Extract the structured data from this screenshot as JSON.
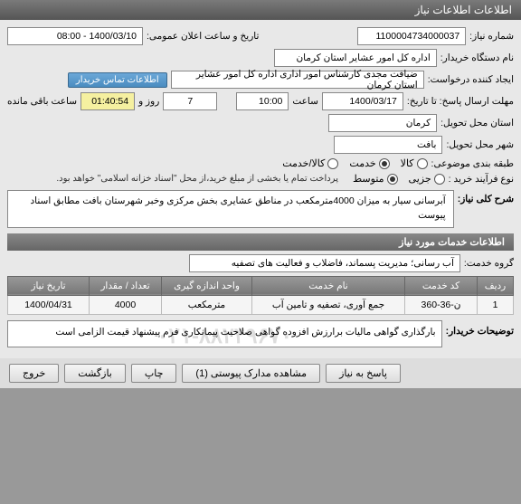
{
  "window": {
    "title": "اطلاعات اطلاعات نیاز"
  },
  "fields": {
    "request_no_label": "شماره نیاز:",
    "request_no": "1100004734000037",
    "announce_label": "تاریخ و ساعت اعلان عمومی:",
    "announce_value": "1400/03/10 - 08:00",
    "org_label": "نام دستگاه خریدار:",
    "org_value": "اداره کل امور عشایر استان کرمان",
    "creator_label": "ایجاد کننده درخواست:",
    "creator_value": "ضیافت مجدی کارشناس امور اداری اداره کل امور عشایر استان کرمان",
    "contact_btn": "اطلاعات تماس خریدار",
    "deadline_label": "مهلت ارسال پاسخ: تا تاریخ:",
    "deadline_date": "1400/03/17",
    "time_label": "ساعت",
    "deadline_time": "10:00",
    "days_label": "روز و",
    "days_value": "7",
    "countdown": "01:40:54",
    "remaining_label": "ساعت باقی مانده",
    "province_label": "استان محل تحویل:",
    "province_value": "کرمان",
    "city_label": "شهر محل تحویل:",
    "city_value": "بافت",
    "category_label": "طبقه بندی موضوعی:",
    "cat_goods": "کالا",
    "cat_service": "خدمت",
    "cat_goods_service": "کالا/خدمت",
    "purchase_type_label": "نوع فرآیند خرید :",
    "pt_small": "جزیی",
    "pt_medium": "متوسط",
    "payment_note": "پرداخت تمام یا بخشی از مبلغ خرید،از محل \"اسناد خزانه اسلامی\" خواهد بود."
  },
  "summary": {
    "header": "شرح کلی نیاز:",
    "text": "آبرسانی سیار به میزان 4000مترمکعب در مناطق عشایری بخش مرکزی وخبر شهرستان بافت مطابق اسناد پیوست"
  },
  "services": {
    "header": "اطلاعات خدمات مورد نیاز",
    "group_label": "گروه خدمت:",
    "group_value": "آب رسانی؛ مدیریت پسماند، فاضلاب و فعالیت های تصفیه",
    "columns": {
      "row": "ردیف",
      "code": "کد خدمت",
      "name": "نام خدمت",
      "unit": "واحد اندازه گیری",
      "qty": "تعداد / مقدار",
      "date": "تاریخ نیاز"
    },
    "rows": [
      {
        "row": "1",
        "code": "ن-36-360",
        "name": "جمع آوری، تصفیه و تامین آب",
        "unit": "مترمکعب",
        "qty": "4000",
        "date": "1400/04/31"
      }
    ]
  },
  "buyer_notes": {
    "label": "توضیحات خریدار:",
    "watermark": "۰۲۱-۸۸۲۴۹۶۷۰",
    "text": "بارگذاری گواهی مالیات برارزش افزوده گواهی صلاحیت پیمانکاری فرم پیشنهاد قیمت الزامی است"
  },
  "buttons": {
    "respond": "پاسخ به نیاز",
    "attachments": "مشاهده مدارک پیوستی (1)",
    "print": "چاپ",
    "back": "بازگشت",
    "exit": "خروج"
  },
  "colors": {
    "header_grad_top": "#888888",
    "header_grad_bottom": "#666666",
    "link_btn": "#4a8cc0",
    "countdown_bg": "#f5f0a0"
  }
}
